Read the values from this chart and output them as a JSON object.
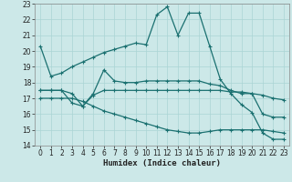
{
  "xlabel": "Humidex (Indice chaleur)",
  "xlim": [
    -0.5,
    23.5
  ],
  "ylim": [
    14,
    23
  ],
  "yticks": [
    14,
    15,
    16,
    17,
    18,
    19,
    20,
    21,
    22,
    23
  ],
  "xticks": [
    0,
    1,
    2,
    3,
    4,
    5,
    6,
    7,
    8,
    9,
    10,
    11,
    12,
    13,
    14,
    15,
    16,
    17,
    18,
    19,
    20,
    21,
    22,
    23
  ],
  "background_color": "#cce8e8",
  "grid_color": "#aad4d4",
  "line_color": "#1a7070",
  "line1_x": [
    0,
    1,
    2,
    3,
    4,
    5,
    6,
    7,
    8,
    9,
    10,
    11,
    12,
    13,
    14,
    15,
    16,
    17,
    18,
    19,
    20,
    21,
    22,
    23
  ],
  "line1_y": [
    20.3,
    18.4,
    18.6,
    19.0,
    19.3,
    19.6,
    19.9,
    20.1,
    20.3,
    20.5,
    20.4,
    22.3,
    22.8,
    21.0,
    22.4,
    22.4,
    20.3,
    18.2,
    17.3,
    16.6,
    16.1,
    14.8,
    14.4,
    14.4
  ],
  "line2_x": [
    0,
    1,
    2,
    3,
    4,
    5,
    6,
    7,
    8,
    9,
    10,
    11,
    12,
    13,
    14,
    15,
    16,
    17,
    18,
    19,
    20,
    21,
    22,
    23
  ],
  "line2_y": [
    17.5,
    17.5,
    17.5,
    16.7,
    16.5,
    17.3,
    18.8,
    18.1,
    18.0,
    18.0,
    18.1,
    18.1,
    18.1,
    18.1,
    18.1,
    18.1,
    17.9,
    17.8,
    17.5,
    17.3,
    17.3,
    16.0,
    15.8,
    15.8
  ],
  "line3_x": [
    0,
    1,
    2,
    3,
    4,
    5,
    6,
    7,
    8,
    9,
    10,
    11,
    12,
    13,
    14,
    15,
    16,
    17,
    18,
    19,
    20,
    21,
    22,
    23
  ],
  "line3_y": [
    17.5,
    17.5,
    17.5,
    17.3,
    16.5,
    17.2,
    17.5,
    17.5,
    17.5,
    17.5,
    17.5,
    17.5,
    17.5,
    17.5,
    17.5,
    17.5,
    17.5,
    17.5,
    17.4,
    17.4,
    17.3,
    17.2,
    17.0,
    16.9
  ],
  "line4_x": [
    0,
    1,
    2,
    3,
    4,
    5,
    6,
    7,
    8,
    9,
    10,
    11,
    12,
    13,
    14,
    15,
    16,
    17,
    18,
    19,
    20,
    21,
    22,
    23
  ],
  "line4_y": [
    17.0,
    17.0,
    17.0,
    17.0,
    16.8,
    16.5,
    16.2,
    16.0,
    15.8,
    15.6,
    15.4,
    15.2,
    15.0,
    14.9,
    14.8,
    14.8,
    14.9,
    15.0,
    15.0,
    15.0,
    15.0,
    15.0,
    14.9,
    14.8
  ],
  "marker": "+",
  "markersize": 3,
  "linewidth": 0.9,
  "tick_fontsize": 5.5,
  "xlabel_fontsize": 6.5
}
